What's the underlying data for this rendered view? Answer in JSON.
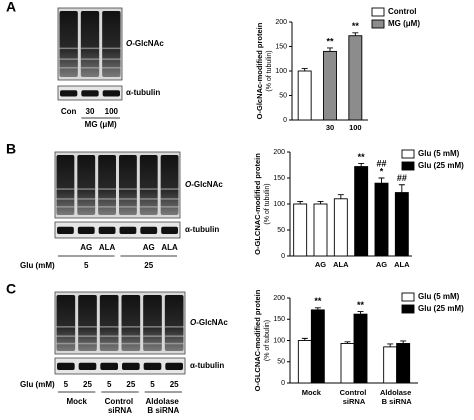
{
  "panel_labels": [
    "A",
    "B",
    "C"
  ],
  "blots": [
    {
      "protein": "O-GlcNAc",
      "loading": "α-tubulin",
      "lanes": [
        "Con",
        "30",
        "100"
      ],
      "treatment": "MG (μM)"
    },
    {
      "protein": "O-GlcNAc",
      "loading": "α-tubulin",
      "row_label": "Glu (mM)",
      "lanes": [
        null,
        "AG",
        "ALA",
        null,
        "AG",
        "ALA"
      ],
      "groups": [
        "5",
        "25"
      ]
    },
    {
      "protein": "O-GlcNAc",
      "loading": "α-tubulin",
      "row_label": "Glu (mM)",
      "lanes": [
        "5",
        "25",
        "5",
        "25",
        "5",
        "25"
      ],
      "groups": [
        "Mock",
        "Control siRNA",
        "Aldolase B siRNA"
      ]
    }
  ],
  "chart_data": [
    {
      "type": "bar",
      "ylabel": "O-GlcNAc-modified protein",
      "ysublabel": "(% of tubulin)",
      "categories": [
        null,
        "30",
        "100"
      ],
      "series": [
        {
          "name": "Control",
          "color": "#ffffff",
          "values": [
            100,
            null,
            null
          ],
          "errors": [
            5,
            null,
            null
          ],
          "annotations": [
            null,
            null,
            null
          ]
        },
        {
          "name": "MG (μM)",
          "color": "#8c8c8c",
          "values": [
            null,
            140,
            172
          ],
          "errors": [
            null,
            7,
            6
          ],
          "annotations": [
            null,
            [
              "**"
            ],
            [
              "**"
            ]
          ]
        }
      ],
      "ylim": [
        0,
        200
      ],
      "yticks": [
        0,
        50,
        100,
        150,
        200
      ]
    },
    {
      "type": "bar",
      "ylabel": "O-GLCNAC-modified protein",
      "ysublabel": "(% of tubulin)",
      "categories": [
        null,
        "AG",
        "ALA",
        null,
        "AG",
        "ALA"
      ],
      "series": [
        {
          "name": "Glu (5 mM)",
          "color": "#ffffff",
          "values": [
            100,
            100,
            110,
            null,
            null,
            null
          ],
          "errors": [
            5,
            5,
            8,
            null,
            null,
            null
          ],
          "annotations": [
            null,
            null,
            null,
            null,
            null,
            null
          ]
        },
        {
          "name": "Glu (25 mM)",
          "color": "#000000",
          "values": [
            null,
            null,
            null,
            172,
            140,
            122
          ],
          "errors": [
            null,
            null,
            null,
            6,
            10,
            15
          ],
          "annotations": [
            null,
            null,
            null,
            [
              "**"
            ],
            [
              "##",
              "*"
            ],
            [
              "##"
            ]
          ]
        }
      ],
      "ylim": [
        0,
        200
      ],
      "yticks": [
        0,
        50,
        100,
        150,
        200
      ]
    },
    {
      "type": "bar",
      "ylabel": "O-GLCNAC-modified protein",
      "ysublabel": "(% of tubulin)",
      "categories": [
        "Mock",
        "Control siRNA",
        "Aldolase B siRNA"
      ],
      "series": [
        {
          "name": "Glu (5 mM)",
          "color": "#ffffff",
          "values": [
            100,
            93,
            85
          ],
          "errors": [
            5,
            4,
            7
          ],
          "annotations": [
            null,
            null,
            null
          ]
        },
        {
          "name": "Glu (25 mM)",
          "color": "#000000",
          "values": [
            172,
            162,
            93
          ],
          "errors": [
            5,
            6,
            6
          ],
          "annotations": [
            [
              "**"
            ],
            [
              "**"
            ],
            null
          ]
        }
      ],
      "ylim": [
        0,
        200
      ],
      "yticks": [
        0,
        50,
        100,
        150,
        200
      ]
    }
  ]
}
